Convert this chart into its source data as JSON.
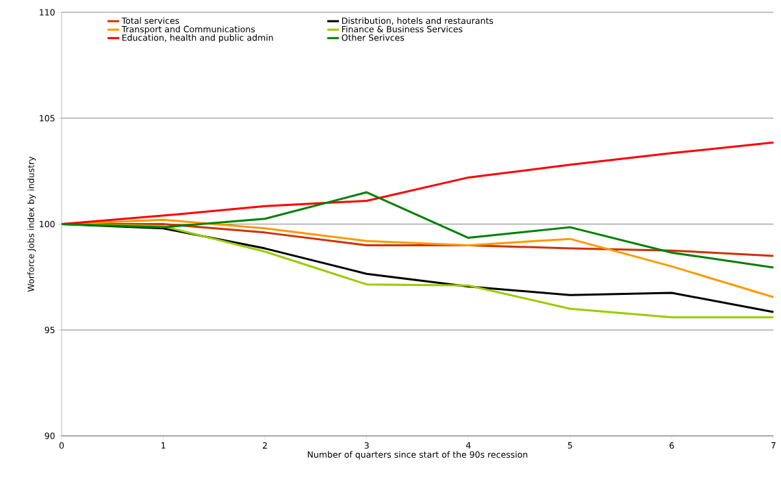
{
  "chart_data": {
    "type": "line",
    "xlabel": "Number of quarters since start of the 90s recession",
    "ylabel": "Worforce Jobs index by industry",
    "x": [
      0,
      1,
      2,
      3,
      4,
      5,
      6,
      7
    ],
    "xlim": [
      0,
      7
    ],
    "xticks": [
      0,
      1,
      2,
      3,
      4,
      5,
      6,
      7
    ],
    "ylim": [
      90,
      110
    ],
    "yticks": [
      90,
      95,
      100,
      105,
      110
    ],
    "grid": "y",
    "legend": "top",
    "line_style": "solid",
    "marker": "none",
    "series": [
      {
        "name": "Total services",
        "color": "#cc3300",
        "values": [
          100,
          100.0,
          99.6,
          99.0,
          99.0,
          98.85,
          98.75,
          98.5
        ]
      },
      {
        "name": "Distribution, hotels and restaurants",
        "color": "#000000",
        "values": [
          100,
          99.8,
          98.85,
          97.65,
          97.05,
          96.65,
          96.75,
          95.85
        ]
      },
      {
        "name": "Transport and Communications",
        "color": "#ff9900",
        "values": [
          100,
          100.2,
          99.8,
          99.2,
          99.0,
          99.3,
          98.0,
          96.55
        ]
      },
      {
        "name": "Finance & Business Services",
        "color": "#99cc00",
        "values": [
          100,
          99.9,
          98.7,
          97.15,
          97.1,
          96.0,
          95.6,
          95.6
        ]
      },
      {
        "name": "Education, health and public admin",
        "color": "#ff0000",
        "values": [
          100,
          100.4,
          100.85,
          101.1,
          102.2,
          102.8,
          103.35,
          103.85
        ]
      },
      {
        "name": "Other Serivces",
        "color": "#008000",
        "values": [
          100,
          99.85,
          100.25,
          101.5,
          99.35,
          99.85,
          98.65,
          97.95
        ]
      }
    ]
  }
}
